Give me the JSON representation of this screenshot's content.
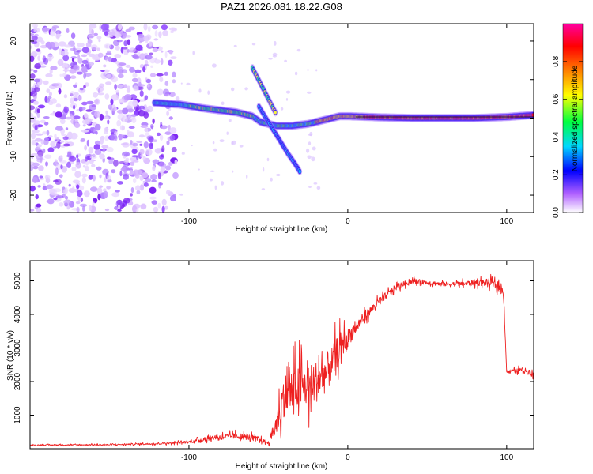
{
  "title": "PAZ1.2026.081.18.22.G08",
  "chart_data": [
    {
      "type": "heatmap",
      "name": "spectrogram",
      "xlabel": "Height of straight line (km)",
      "ylabel": "Frequency (Hz)",
      "xlim": [
        -200,
        117
      ],
      "ylim": [
        -24.5,
        24.5
      ],
      "xticks": [
        -100,
        0,
        100
      ],
      "yticks": [
        -20,
        -10,
        0,
        10,
        20
      ],
      "colorbar": {
        "label": "Normalized spectral amplitude",
        "range": [
          0,
          1
        ],
        "ticks": [
          0.0,
          0.2,
          0.4,
          0.6,
          0.8
        ],
        "colormap": [
          "#ffffff",
          "#8a00ff",
          "#0000ff",
          "#00e0ff",
          "#00ff40",
          "#ffff00",
          "#ff8000",
          "#ff0000",
          "#ff00a0"
        ]
      },
      "features": [
        {
          "name": "diffuse noise",
          "x_range": [
            -200,
            -108
          ],
          "freq_range": [
            -24,
            24
          ]
        },
        {
          "name": "main signal branch",
          "x": [
            -122,
            -105,
            -90,
            -80,
            -70,
            -60,
            -55,
            -45,
            -35,
            -25,
            -15,
            -5,
            0,
            20,
            40,
            60,
            80,
            100,
            117
          ],
          "freq": [
            4,
            3.5,
            2.5,
            2,
            1.5,
            0.5,
            -1,
            -2,
            -2,
            -1.5,
            -0.5,
            0.5,
            0.5,
            0.2,
            0,
            0,
            0,
            0.3,
            0.8
          ]
        },
        {
          "name": "upper split branch",
          "x": [
            -60,
            -55,
            -50,
            -45
          ],
          "freq": [
            13,
            9,
            5,
            1
          ]
        },
        {
          "name": "lower split branch",
          "x": [
            -56,
            -50,
            -44,
            -38,
            -33,
            -30
          ],
          "freq": [
            3,
            -1,
            -5,
            -9,
            -12,
            -14
          ]
        }
      ]
    },
    {
      "type": "line",
      "name": "snr",
      "xlabel": "Height of straight line (km)",
      "ylabel": "SNR (10 * v/v)",
      "xlim": [
        -200,
        117
      ],
      "ylim": [
        0,
        5600
      ],
      "xticks": [
        -100,
        0,
        100
      ],
      "yticks": [
        1000,
        2000,
        3000,
        4000,
        5000
      ],
      "color": "#ee2020",
      "envelope": {
        "x": [
          -200,
          -150,
          -120,
          -100,
          -85,
          -70,
          -60,
          -50,
          -45,
          -40,
          -35,
          -30,
          -25,
          -20,
          -15,
          -10,
          -5,
          0,
          10,
          20,
          30,
          40,
          50,
          60,
          70,
          80,
          90,
          98,
          100,
          102,
          110,
          117
        ],
        "mean": [
          110,
          120,
          150,
          200,
          330,
          380,
          330,
          180,
          700,
          1600,
          1700,
          1850,
          1850,
          2000,
          2200,
          2500,
          3050,
          3300,
          3900,
          4400,
          4800,
          5000,
          4950,
          4900,
          4900,
          4950,
          4950,
          4700,
          2300,
          2300,
          2350,
          2250
        ],
        "spread": [
          30,
          40,
          50,
          80,
          150,
          200,
          180,
          100,
          700,
          1400,
          1500,
          1500,
          1400,
          1400,
          1300,
          1200,
          900,
          600,
          300,
          250,
          200,
          150,
          150,
          150,
          150,
          200,
          250,
          250,
          150,
          120,
          150,
          250
        ]
      }
    }
  ]
}
